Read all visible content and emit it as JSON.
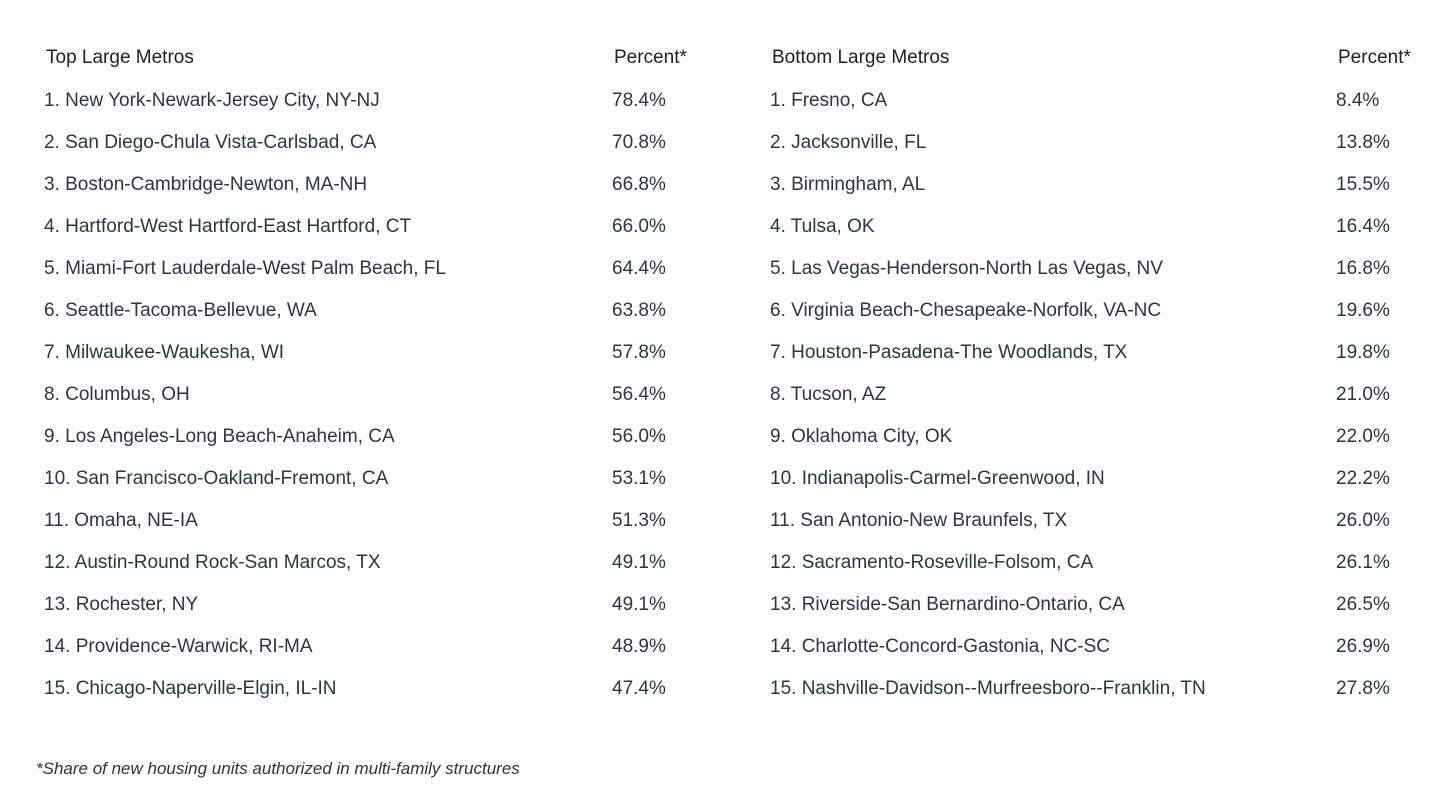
{
  "top": {
    "header_name": "Top Large Metros",
    "header_percent": "Percent*",
    "rows": [
      {
        "name": "1. New York-Newark-Jersey City, NY-NJ",
        "percent": "78.4%"
      },
      {
        "name": "2. San Diego-Chula Vista-Carlsbad, CA",
        "percent": "70.8%"
      },
      {
        "name": "3. Boston-Cambridge-Newton, MA-NH",
        "percent": "66.8%"
      },
      {
        "name": "4. Hartford-West Hartford-East Hartford, CT",
        "percent": "66.0%"
      },
      {
        "name": "5. Miami-Fort Lauderdale-West Palm Beach, FL",
        "percent": "64.4%"
      },
      {
        "name": "6. Seattle-Tacoma-Bellevue, WA",
        "percent": "63.8%"
      },
      {
        "name": "7. Milwaukee-Waukesha, WI",
        "percent": "57.8%"
      },
      {
        "name": "8. Columbus, OH",
        "percent": "56.4%"
      },
      {
        "name": "9. Los Angeles-Long Beach-Anaheim, CA",
        "percent": "56.0%"
      },
      {
        "name": "10. San Francisco-Oakland-Fremont, CA",
        "percent": "53.1%"
      },
      {
        "name": "11. Omaha, NE-IA",
        "percent": "51.3%"
      },
      {
        "name": "12. Austin-Round Rock-San Marcos, TX",
        "percent": "49.1%"
      },
      {
        "name": "13. Rochester, NY",
        "percent": "49.1%"
      },
      {
        "name": "14. Providence-Warwick, RI-MA",
        "percent": "48.9%"
      },
      {
        "name": "15. Chicago-Naperville-Elgin, IL-IN",
        "percent": "47.4%"
      }
    ]
  },
  "bottom": {
    "header_name": "Bottom Large Metros",
    "header_percent": "Percent*",
    "rows": [
      {
        "name": "1. Fresno, CA",
        "percent": "8.4%"
      },
      {
        "name": "2. Jacksonville, FL",
        "percent": "13.8%"
      },
      {
        "name": "3. Birmingham, AL",
        "percent": "15.5%"
      },
      {
        "name": "4. Tulsa, OK",
        "percent": "16.4%"
      },
      {
        "name": "5. Las Vegas-Henderson-North Las Vegas, NV",
        "percent": "16.8%"
      },
      {
        "name": "6. Virginia Beach-Chesapeake-Norfolk, VA-NC",
        "percent": "19.6%"
      },
      {
        "name": "7. Houston-Pasadena-The Woodlands, TX",
        "percent": "19.8%"
      },
      {
        "name": "8. Tucson, AZ",
        "percent": "21.0%"
      },
      {
        "name": "9. Oklahoma City, OK",
        "percent": "22.0%"
      },
      {
        "name": "10. Indianapolis-Carmel-Greenwood, IN",
        "percent": "22.2%"
      },
      {
        "name": "11. San Antonio-New Braunfels, TX",
        "percent": "26.0%"
      },
      {
        "name": "12. Sacramento-Roseville-Folsom, CA",
        "percent": "26.1%"
      },
      {
        "name": "13. Riverside-San Bernardino-Ontario, CA",
        "percent": "26.5%"
      },
      {
        "name": "14. Charlotte-Concord-Gastonia, NC-SC",
        "percent": "26.9%"
      },
      {
        "name": "15. Nashville-Davidson--Murfreesboro--Franklin, TN",
        "percent": "27.8%"
      }
    ]
  },
  "footnote": "*Share of new housing units authorized in multi-family structures"
}
